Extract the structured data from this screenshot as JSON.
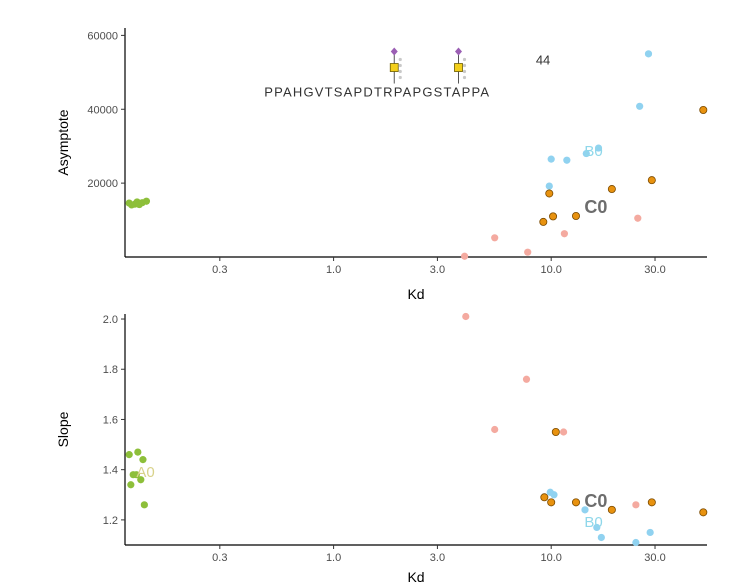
{
  "chart_data": [
    {
      "type": "scatter",
      "xlabel": "Kd",
      "ylabel": "Asymptote",
      "x_scale": "log",
      "xlim": [
        0.11,
        52
      ],
      "ylim": [
        0,
        62000
      ],
      "x_ticks": [
        0.3,
        1.0,
        3.0,
        10.0,
        30.0
      ],
      "x_tick_labels": [
        "0.3",
        "1.0",
        "3.0",
        "10.0",
        "30.0"
      ],
      "y_ticks": [
        20000,
        40000,
        60000
      ],
      "y_tick_labels": [
        "20000",
        "40000",
        "60000"
      ],
      "grid": false,
      "series": [
        {
          "color": "#8dbf3a",
          "points": [
            [
              0.115,
              14600
            ],
            [
              0.118,
              14100
            ],
            [
              0.122,
              14300
            ],
            [
              0.125,
              14900
            ],
            [
              0.128,
              14200
            ],
            [
              0.132,
              14700
            ],
            [
              0.138,
              15100
            ]
          ]
        },
        {
          "color": "#f4aaa0",
          "points": [
            [
              4.0,
              200
            ],
            [
              5.5,
              5200
            ],
            [
              7.8,
              1300
            ],
            [
              11.5,
              6300
            ],
            [
              25.0,
              10500
            ]
          ]
        },
        {
          "color": "#90d2f0",
          "points": [
            [
              9.8,
              19200
            ],
            [
              10.0,
              26500
            ],
            [
              11.8,
              26200
            ],
            [
              14.5,
              28000
            ],
            [
              16.5,
              29500
            ],
            [
              25.5,
              40800
            ],
            [
              28.0,
              55000
            ]
          ]
        },
        {
          "color": "#e8920f",
          "stroke": "#7a4a00",
          "points": [
            [
              9.2,
              9500
            ],
            [
              9.8,
              17200
            ],
            [
              10.2,
              11000
            ],
            [
              13.0,
              11100
            ],
            [
              19.0,
              18400
            ],
            [
              29.0,
              20800
            ],
            [
              50.0,
              39800
            ]
          ]
        }
      ],
      "annotations": [
        {
          "text": "B0",
          "x": 14.2,
          "y": 29000,
          "color": "#8fd7ea"
        },
        {
          "text": "C0",
          "x": 14.2,
          "y": 13500,
          "color": "#6d6d6d"
        },
        {
          "text": "44",
          "x": 8.5,
          "y": 53700,
          "color": "#333333"
        }
      ],
      "sequence": {
        "text": "PPAHGVTSAPDTRPAPGSTAPPA",
        "x": 0.48,
        "y": 44800,
        "glycan_sites_x": [
          1.9,
          3.75
        ]
      }
    },
    {
      "type": "scatter",
      "xlabel": "Kd",
      "ylabel": "Slope",
      "x_scale": "log",
      "xlim": [
        0.11,
        52
      ],
      "ylim": [
        1.1,
        2.02
      ],
      "x_ticks": [
        0.3,
        1.0,
        3.0,
        10.0,
        30.0
      ],
      "x_tick_labels": [
        "0.3",
        "1.0",
        "3.0",
        "10.0",
        "30.0"
      ],
      "y_ticks": [
        1.2,
        1.4,
        1.6,
        1.8,
        2.0
      ],
      "y_tick_labels": [
        "1.2",
        "1.4",
        "1.6",
        "1.8",
        "2.0"
      ],
      "grid": false,
      "series": [
        {
          "color": "#8dbf3a",
          "points": [
            [
              0.115,
              1.46
            ],
            [
              0.117,
              1.34
            ],
            [
              0.12,
              1.38
            ],
            [
              0.124,
              1.38
            ],
            [
              0.126,
              1.47
            ],
            [
              0.13,
              1.36
            ],
            [
              0.133,
              1.44
            ],
            [
              0.135,
              1.26
            ]
          ]
        },
        {
          "color": "#f4aaa0",
          "points": [
            [
              4.05,
              2.01
            ],
            [
              5.5,
              1.56
            ],
            [
              7.7,
              1.76
            ],
            [
              11.4,
              1.55
            ],
            [
              24.5,
              1.26
            ]
          ]
        },
        {
          "color": "#90d2f0",
          "points": [
            [
              9.9,
              1.31
            ],
            [
              10.3,
              1.3
            ],
            [
              14.3,
              1.24
            ],
            [
              16.2,
              1.17
            ],
            [
              17.0,
              1.13
            ],
            [
              24.5,
              1.11
            ],
            [
              28.5,
              1.15
            ]
          ]
        },
        {
          "color": "#e8920f",
          "stroke": "#7a4a00",
          "points": [
            [
              9.3,
              1.29
            ],
            [
              10.0,
              1.27
            ],
            [
              10.5,
              1.55
            ],
            [
              13.0,
              1.27
            ],
            [
              19.0,
              1.24
            ],
            [
              29.0,
              1.27
            ],
            [
              50.0,
              1.23
            ]
          ]
        }
      ],
      "annotations": [
        {
          "text": "C0",
          "x": 14.2,
          "y": 1.275,
          "color": "#6d6d6d"
        },
        {
          "text": "B0",
          "x": 14.2,
          "y": 1.195,
          "color": "#8fd7ea"
        },
        {
          "text": "A0",
          "x": 0.124,
          "y": 1.395,
          "color": "#d8d28a"
        }
      ]
    }
  ]
}
